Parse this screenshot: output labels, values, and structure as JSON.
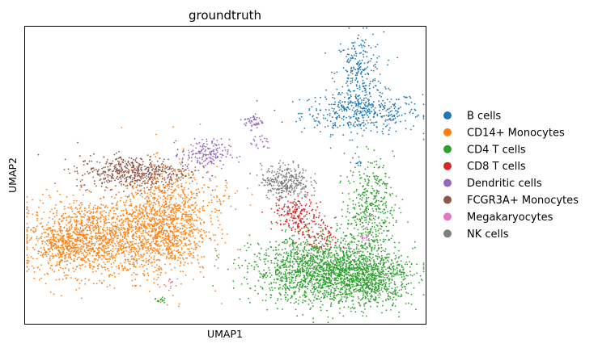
{
  "chart_data": {
    "type": "scatter",
    "title": "groundtruth",
    "xlabel": "UMAP1",
    "ylabel": "UMAP2",
    "xlim": [
      0,
      100
    ],
    "ylim": [
      0,
      100
    ],
    "ticks": "none",
    "grid": false,
    "legend_position": "right",
    "series": [
      {
        "name": "B cells",
        "color": "#1f77b4",
        "clusters": [
          {
            "cx": 84,
            "cy": 71,
            "sx": 7.5,
            "sy": 3.5,
            "n": 420
          },
          {
            "cx": 83.5,
            "cy": 84,
            "sx": 3,
            "sy": 7,
            "n": 260
          },
          {
            "cx": 83,
            "cy": 54,
            "sx": 0.6,
            "sy": 1.2,
            "n": 8
          }
        ]
      },
      {
        "name": "CD14+ Monocytes",
        "color": "#ff7f0e",
        "clusters": [
          {
            "cx": 18,
            "cy": 29,
            "sx": 8.5,
            "sy": 6.5,
            "n": 1400
          },
          {
            "cx": 35,
            "cy": 34,
            "sx": 5.5,
            "sy": 9,
            "n": 1200
          },
          {
            "cx": 9,
            "cy": 26,
            "sx": 3,
            "sy": 4,
            "n": 250
          },
          {
            "cx": 49,
            "cy": 42,
            "sx": 3,
            "sy": 3,
            "n": 40
          }
        ]
      },
      {
        "name": "CD4 T cells",
        "color": "#2ca02c",
        "clusters": [
          {
            "cx": 75,
            "cy": 18,
            "sx": 9,
            "sy": 5.5,
            "n": 1800
          },
          {
            "cx": 86,
            "cy": 15,
            "sx": 5,
            "sy": 4.5,
            "n": 600
          },
          {
            "cx": 86,
            "cy": 39,
            "sx": 3,
            "sy": 8,
            "n": 420
          },
          {
            "cx": 34,
            "cy": 8,
            "sx": 0.6,
            "sy": 0.5,
            "n": 15
          }
        ]
      },
      {
        "name": "CD8 T cells",
        "color": "#d62728",
        "clusters": [
          {
            "cx": 68,
            "cy": 37,
            "sx": 3,
            "sy": 3,
            "n": 200
          },
          {
            "cx": 73,
            "cy": 29,
            "sx": 3,
            "sy": 3,
            "n": 90
          }
        ]
      },
      {
        "name": "Dendritic cells",
        "color": "#9467bd",
        "clusters": [
          {
            "cx": 45,
            "cy": 57,
            "sx": 3,
            "sy": 2.5,
            "n": 170
          },
          {
            "cx": 57,
            "cy": 68,
            "sx": 1.2,
            "sy": 1.2,
            "n": 50
          },
          {
            "cx": 59,
            "cy": 61,
            "sx": 1.5,
            "sy": 1.8,
            "n": 20
          }
        ]
      },
      {
        "name": "FCGR3A+ Monocytes",
        "color": "#8c564b",
        "clusters": [
          {
            "cx": 27,
            "cy": 51,
            "sx": 7,
            "sy": 2.8,
            "n": 550
          }
        ]
      },
      {
        "name": "Megakaryocytes",
        "color": "#e377c2",
        "clusters": [
          {
            "cx": 85,
            "cy": 29,
            "sx": 1,
            "sy": 1,
            "n": 14
          },
          {
            "cx": 36,
            "cy": 13,
            "sx": 0.5,
            "sy": 1,
            "n": 6
          },
          {
            "cx": 43,
            "cy": 60,
            "sx": 2,
            "sy": 2,
            "n": 6
          },
          {
            "cx": 90,
            "cy": 68,
            "sx": 0.8,
            "sy": 0.8,
            "n": 4
          }
        ]
      },
      {
        "name": "NK cells",
        "color": "#7f7f7f",
        "clusters": [
          {
            "cx": 65,
            "cy": 48,
            "sx": 3,
            "sy": 2.8,
            "n": 320
          }
        ]
      }
    ]
  }
}
